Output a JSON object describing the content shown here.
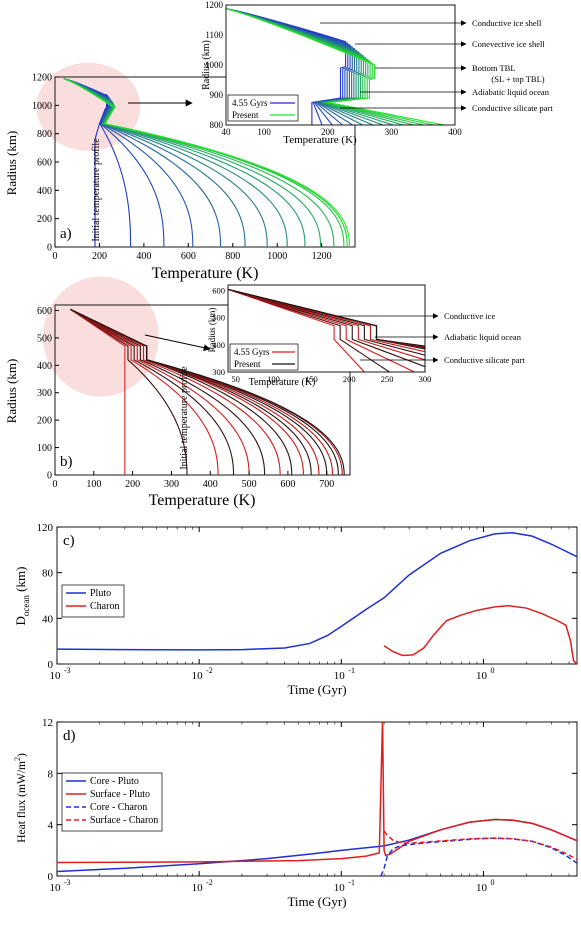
{
  "colors": {
    "pluto_early": "#1f2fd6",
    "pluto_present": "#26e02a",
    "charon_early": "#e01e1e",
    "charon_present": "#141414",
    "core_pluto": "#1f2fd6",
    "surface_pluto": "#e01e1e",
    "highlight": "#f9d8d8"
  },
  "chart_data": [
    {
      "type": "line",
      "panel": "a)",
      "xlabel": "Temperature  (K)",
      "ylabel": "Radius (km)",
      "xlim": [
        0,
        1350
      ],
      "ylim": [
        0,
        1200
      ],
      "xticks": [
        "0",
        "200",
        "400",
        "600",
        "800",
        "1000",
        "1200"
      ],
      "yticks": [
        "0",
        "200",
        "400",
        "600",
        "800",
        "1000",
        "1200"
      ],
      "annotation": "Initial temperature profile",
      "profiles": {
        "surface_temperature": 40,
        "surface_radius": 1188,
        "ocean_top_radius": [
          1075,
          1068,
          1060,
          1052,
          1044,
          1036,
          1028,
          1020,
          1012,
          1004,
          996,
          988
        ],
        "ocean_temperature": [
          232,
          236,
          240,
          244,
          248,
          252,
          256,
          260,
          262,
          265,
          268,
          270
        ],
        "core_radius": 870,
        "center_temperature": [
          180,
          340,
          490,
          620,
          745,
          855,
          955,
          1045,
          1125,
          1195,
          1255,
          1300,
          1315,
          1325
        ],
        "count": 14
      },
      "inset": {
        "xlim": [
          40,
          400
        ],
        "ylim": [
          800,
          1200
        ],
        "xticks": [
          "40",
          "100",
          "200",
          "300",
          "400"
        ],
        "yticks": [
          "800",
          "900",
          "1000",
          "1100",
          "1200"
        ],
        "xlabel": "Temperature  (K)",
        "ylabel": "Radius (km)",
        "legend": [
          "4.55 Gyrs",
          "Present"
        ],
        "annotations": [
          "Conductive ice shell",
          "Conevective ice shell",
          "Bottom TBL",
          "(SL + top TBL)",
          "Adiabatic liquid ocean",
          "Conductive silicate part"
        ]
      }
    },
    {
      "type": "line",
      "panel": "b)",
      "xlabel": "Temperature  (K)",
      "ylabel": "Radius (km)",
      "xlim": [
        0,
        760
      ],
      "ylim": [
        0,
        620
      ],
      "xticks": [
        "0",
        "100",
        "200",
        "300",
        "400",
        "500",
        "600",
        "700"
      ],
      "yticks": [
        "0",
        "100",
        "200",
        "300",
        "400",
        "500",
        "600"
      ],
      "annotation": "Initial temperature profile",
      "profiles": {
        "surface_temperature": 40,
        "surface_radius": 604,
        "ocean_top_radius": 470,
        "ocean_bottom_radius": 420,
        "ocean_temperature": [
          180,
          188,
          196,
          204,
          212,
          220,
          228,
          236
        ],
        "center_temperature": [
          180,
          340,
          420,
          460,
          500,
          540,
          580,
          610,
          640,
          660,
          680,
          700,
          715,
          730,
          740,
          745
        ]
      },
      "inset": {
        "xlim": [
          40,
          300
        ],
        "ylim": [
          300,
          620
        ],
        "xticks": [
          "50",
          "100",
          "150",
          "200",
          "250",
          "300"
        ],
        "yticks": [
          "300",
          "400",
          "500",
          "600"
        ],
        "xlabel": "Temperature  (K)",
        "ylabel": "Radius (km)",
        "legend": [
          "4.55 Gyrs",
          "Present"
        ],
        "annotations": [
          "Conductive ice",
          "Adiabatic liquid ocean",
          "Conductive silicate  part"
        ]
      }
    },
    {
      "type": "line",
      "panel": "c)",
      "xscale": "log",
      "xlabel": "Time (Gyr)",
      "ylabel": "D",
      "ylabel_sub": "ocean",
      "ylabel_unit": " (km)",
      "xlim": [
        0.001,
        4.55
      ],
      "ylim": [
        0,
        120
      ],
      "xticks": [
        "10",
        "10",
        "10",
        "10"
      ],
      "xtick_exponents": [
        "-3",
        "-2",
        "-1",
        "0"
      ],
      "yticks": [
        "0",
        "40",
        "80",
        "120"
      ],
      "series": [
        {
          "name": "Pluto",
          "color": "#1f2fd6",
          "x": [
            0.001,
            0.003,
            0.01,
            0.02,
            0.04,
            0.06,
            0.08,
            0.1,
            0.15,
            0.2,
            0.3,
            0.5,
            0.8,
            1.2,
            1.6,
            2.2,
            3.0,
            4.55
          ],
          "y": [
            13,
            12.6,
            12.4,
            12.6,
            14,
            18,
            25,
            33,
            48,
            58,
            78,
            97,
            108,
            114,
            115,
            112,
            105,
            94
          ]
        },
        {
          "name": "Charon",
          "color": "#e01e1e",
          "x": [
            0.2,
            0.23,
            0.27,
            0.32,
            0.38,
            0.45,
            0.55,
            0.7,
            0.9,
            1.2,
            1.5,
            2.0,
            2.6,
            3.3,
            3.8,
            4.1,
            4.3,
            4.55
          ],
          "y": [
            16,
            11,
            7.5,
            8,
            14,
            26,
            38,
            43,
            47,
            50,
            51,
            49,
            44,
            38,
            34,
            20,
            3,
            0
          ]
        }
      ],
      "legend": [
        "Pluto",
        "Charon"
      ]
    },
    {
      "type": "line",
      "panel": "d)",
      "xscale": "log",
      "xlabel": "Time (Gyr)",
      "ylabel": "Heat flux (mW/m",
      "ylabel_sup": "2",
      "ylabel_end": ")",
      "xlim": [
        0.001,
        4.55
      ],
      "ylim": [
        0,
        12
      ],
      "xticks": [
        "10",
        "10",
        "10",
        "10"
      ],
      "xtick_exponents": [
        "-3",
        "-2",
        "-1",
        "0"
      ],
      "yticks": [
        "0",
        "4",
        "8",
        "12"
      ],
      "series": [
        {
          "name": "Core - Pluto",
          "color": "#1f2fd6",
          "dash": "solid",
          "x": [
            0.001,
            0.003,
            0.01,
            0.03,
            0.06,
            0.1,
            0.15,
            0.2,
            0.3,
            0.5,
            0.8,
            1.2,
            1.6,
            2.2,
            3.0,
            4.55
          ],
          "y": [
            0.35,
            0.6,
            0.95,
            1.35,
            1.7,
            2.0,
            2.2,
            2.35,
            2.8,
            3.6,
            4.2,
            4.4,
            4.35,
            4.1,
            3.6,
            2.75
          ]
        },
        {
          "name": "Surface - Pluto",
          "color": "#e01e1e",
          "dash": "solid",
          "x": [
            0.001,
            0.01,
            0.05,
            0.1,
            0.15,
            0.185,
            0.195,
            0.2,
            0.205,
            0.22,
            0.25,
            0.3,
            0.5,
            0.8,
            1.2,
            1.6,
            2.2,
            3.0,
            4.55
          ],
          "y": [
            1.05,
            1.1,
            1.2,
            1.35,
            1.55,
            1.8,
            12.2,
            2.0,
            1.6,
            1.7,
            2.1,
            2.7,
            3.6,
            4.2,
            4.4,
            4.35,
            4.1,
            3.6,
            2.75
          ]
        },
        {
          "name": "Core - Charon",
          "color": "#1f2fd6",
          "dash": "dashed",
          "x": [
            0.19,
            0.2,
            0.21,
            0.23,
            0.26,
            0.3,
            0.4,
            0.6,
            0.9,
            1.2,
            1.6,
            2.2,
            3.0,
            3.8,
            4.55
          ],
          "y": [
            0.0,
            0.6,
            1.5,
            2.1,
            2.35,
            2.45,
            2.6,
            2.75,
            2.9,
            2.95,
            2.9,
            2.7,
            2.2,
            1.6,
            1.0
          ]
        },
        {
          "name": "Surface - Charon",
          "color": "#e01e1e",
          "dash": "dashed",
          "x": [
            0.2,
            0.21,
            0.23,
            0.26,
            0.3,
            0.4,
            0.6,
            0.9,
            1.2,
            1.6,
            2.2,
            3.0,
            3.8,
            4.55
          ],
          "y": [
            3.5,
            3.2,
            2.8,
            2.6,
            2.55,
            2.65,
            2.8,
            2.92,
            2.95,
            2.9,
            2.7,
            2.25,
            1.75,
            1.3
          ]
        }
      ],
      "legend": [
        "Core - Pluto",
        "Surface - Pluto",
        "Core - Charon",
        "Surface - Charon"
      ]
    }
  ]
}
